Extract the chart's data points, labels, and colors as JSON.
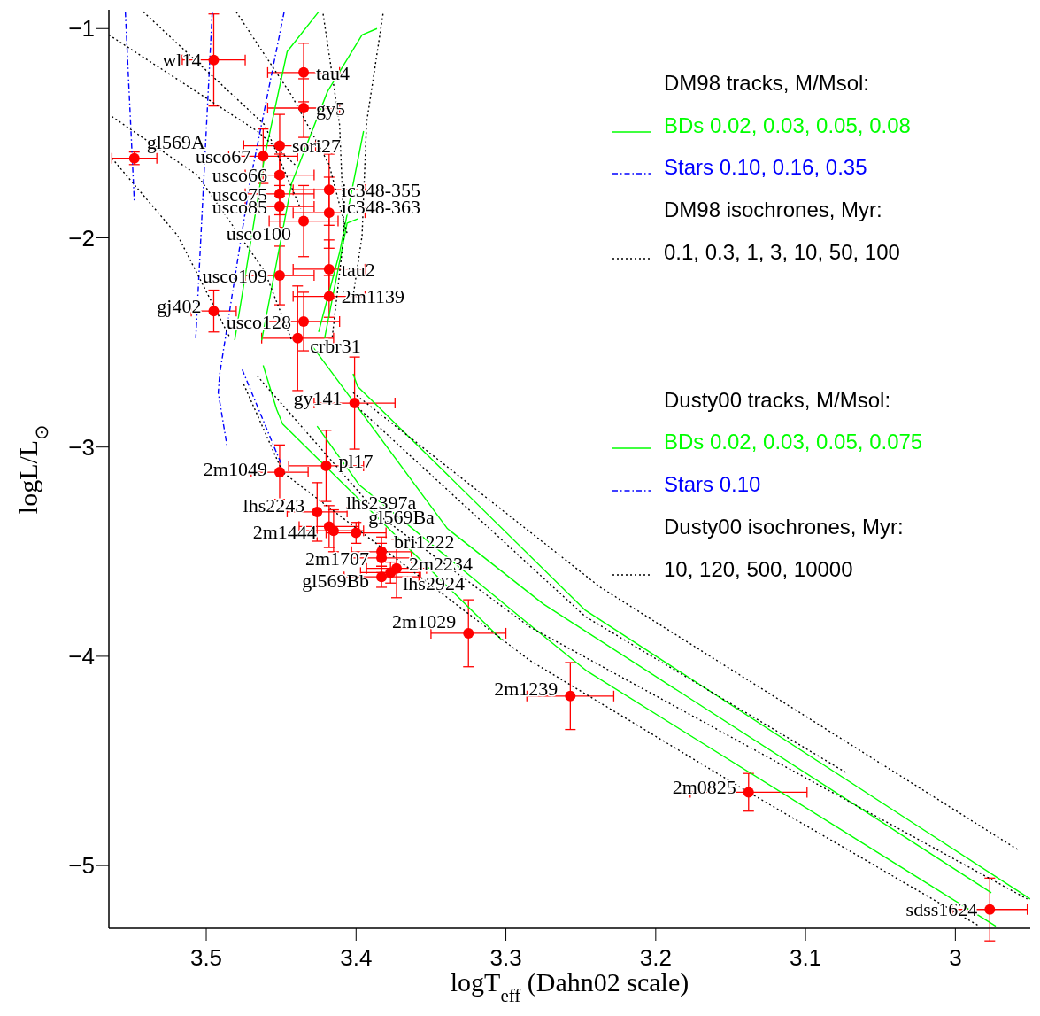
{
  "chart_data": {
    "type": "scatter",
    "xlabel": "logT$_{eff}$ (Dahn02 scale)",
    "ylabel": "logL/L$_{⊙}$",
    "xlim": [
      3.565,
      2.95
    ],
    "ylim": [
      -5.3,
      -0.91
    ],
    "xticks": [
      3.5,
      3.4,
      3.3,
      3.2,
      3.1,
      3
    ],
    "yticks": [
      -5,
      -4,
      -3,
      -2,
      -1
    ],
    "legend": "top right",
    "annotations": [
      "DM98 tracks, M/Msol:",
      "DM98 isochrones, Myr:",
      "Dusty00 tracks, M/Msol:",
      "Dusty00 isochrones, Myr:",
      {
        "text": "wl14",
        "x": 3.495,
        "y": -1.15
      },
      {
        "text": "tau4",
        "x": 3.435,
        "y": -1.21
      },
      {
        "text": "gy5",
        "x": 3.435,
        "y": -1.38
      },
      {
        "text": "sori27",
        "x": 3.451,
        "y": -1.56
      },
      {
        "text": "usco67",
        "x": 3.462,
        "y": -1.61
      },
      {
        "text": "gl569A",
        "x": 3.548,
        "y": -1.62
      },
      {
        "text": "usco66",
        "x": 3.451,
        "y": -1.7
      },
      {
        "text": "usco75",
        "x": 3.451,
        "y": -1.79
      },
      {
        "text": "usco85",
        "x": 3.451,
        "y": -1.85
      },
      {
        "text": "ic348-355",
        "x": 3.418,
        "y": -1.77
      },
      {
        "text": "ic348-363",
        "x": 3.418,
        "y": -1.88
      },
      {
        "text": "usco100",
        "x": 3.435,
        "y": -1.92
      },
      {
        "text": "tau2",
        "x": 3.418,
        "y": -2.15
      },
      {
        "text": "usco109",
        "x": 3.451,
        "y": -2.18
      },
      {
        "text": "2m1139",
        "x": 3.418,
        "y": -2.28
      },
      {
        "text": "gj402",
        "x": 3.495,
        "y": -2.35
      },
      {
        "text": "usco128",
        "x": 3.435,
        "y": -2.4
      },
      {
        "text": "crbr31",
        "x": 3.439,
        "y": -2.48
      },
      {
        "text": "gy141",
        "x": 3.401,
        "y": -2.79
      },
      {
        "text": "pl17",
        "x": 3.42,
        "y": -3.09
      },
      {
        "text": "2m1049",
        "x": 3.451,
        "y": -3.12
      },
      {
        "text": "lhs2243",
        "x": 3.426,
        "y": -3.31
      },
      {
        "text": "2m1444",
        "x": 3.418,
        "y": -3.38
      },
      {
        "text": "lhs2397a",
        "x": 3.415,
        "y": -3.4
      },
      {
        "text": "gl569Ba",
        "x": 3.4,
        "y": -3.41
      },
      {
        "text": "bri1222",
        "x": 3.383,
        "y": -3.5
      },
      {
        "text": "2m1707",
        "x": 3.383,
        "y": -3.53
      },
      {
        "text": "2m2234",
        "x": 3.373,
        "y": -3.58
      },
      {
        "text": "lhs2924",
        "x": 3.377,
        "y": -3.6
      },
      {
        "text": "gl569Bb",
        "x": 3.383,
        "y": -3.62
      },
      {
        "text": "2m1029",
        "x": 3.325,
        "y": -3.89
      },
      {
        "text": "2m1239",
        "x": 3.257,
        "y": -4.19
      },
      {
        "text": "2m0825",
        "x": 3.138,
        "y": -4.65
      },
      {
        "text": "sdss1624",
        "x": 2.977,
        "y": -5.21
      }
    ],
    "series": [
      {
        "marker": "circle",
        "color": "#ff0000",
        "x": [
          3.495,
          3.435,
          3.435,
          3.451,
          3.462,
          3.548,
          3.451,
          3.451,
          3.451,
          3.418,
          3.418,
          3.435,
          3.418,
          3.451,
          3.418,
          3.495,
          3.435,
          3.439,
          3.401,
          3.42,
          3.451,
          3.426,
          3.418,
          3.415,
          3.4,
          3.383,
          3.383,
          3.373,
          3.377,
          3.383,
          3.325,
          3.257,
          3.138,
          2.977
        ],
        "values": [
          -1.15,
          -1.21,
          -1.38,
          -1.56,
          -1.61,
          -1.62,
          -1.7,
          -1.79,
          -1.85,
          -1.77,
          -1.88,
          -1.92,
          -2.15,
          -2.18,
          -2.28,
          -2.35,
          -2.4,
          -2.48,
          -2.79,
          -3.09,
          -3.12,
          -3.31,
          -3.38,
          -3.4,
          -3.41,
          -3.5,
          -3.53,
          -3.58,
          -3.6,
          -3.62,
          -3.89,
          -4.19,
          -4.65,
          -5.21
        ],
        "errors": [
          0.22,
          0.14,
          0.14,
          0.15,
          0.13,
          0.03,
          0.1,
          0.1,
          0.1,
          0.17,
          0.17,
          0.17,
          0.14,
          0.14,
          0.1,
          0.1,
          0.14,
          0.25,
          0.22,
          0.17,
          0.13,
          0.14,
          0.1,
          0.1,
          0.05,
          0.07,
          0.07,
          0.14,
          0.05,
          0.05,
          0.16,
          0.16,
          0.09,
          0.15
        ],
        "xerrors": [
          0.021,
          0.024,
          0.024,
          0.024,
          0.023,
          0.015,
          0.023,
          0.023,
          0.023,
          0.024,
          0.024,
          0.023,
          0.024,
          0.023,
          0.024,
          0.015,
          0.024,
          0.024,
          0.027,
          0.025,
          0.019,
          0.02,
          0.02,
          0.02,
          0.02,
          0.02,
          0.02,
          0.02,
          0.02,
          0.025,
          0.025,
          0.029,
          0.039,
          0.025
        ]
      },
      {
        "type": "line",
        "name": "BDs 0.02, 0.03, 0.05, 0.08",
        "color": "#00ff00",
        "line_style": "solid",
        "x": [
          3.481,
          3.461,
          3.446,
          3.425
        ],
        "values": [
          -2.49,
          -1.61,
          -1.11,
          -0.92
        ]
      },
      {
        "type": "line",
        "color": "#00ff00",
        "line_style": "solid",
        "x": [
          3.463,
          3.443,
          3.419,
          3.396,
          3.386
        ],
        "values": [
          -2.49,
          -1.74,
          -1.3,
          -1.03,
          -1.0
        ]
      },
      {
        "type": "line",
        "color": "#00ff00",
        "line_style": "solid",
        "x": [
          3.425,
          3.411,
          3.395
        ],
        "values": [
          -2.45,
          -2.07,
          -1.49
        ]
      },
      {
        "type": "line",
        "color": "#00ff00",
        "line_style": "solid",
        "x": [
          3.421,
          3.406,
          3.399
        ],
        "values": [
          -2.48,
          -1.93,
          -1.91
        ]
      },
      {
        "type": "line",
        "name": "Stars 0.10, 0.16, 0.35",
        "color": "#0000ff",
        "line_style": "dashed",
        "x": [
          3.554,
          3.548
        ],
        "values": [
          -0.92,
          -1.83
        ]
      },
      {
        "type": "line",
        "color": "#0000ff",
        "line_style": "dashed",
        "x": [
          3.496,
          3.507
        ],
        "values": [
          -0.92,
          -2.48
        ]
      },
      {
        "type": "line",
        "color": "#0000ff",
        "line_style": "dashed",
        "x": [
          3.448,
          3.471,
          3.491,
          3.492,
          3.486
        ],
        "values": [
          -0.92,
          -1.74,
          -2.65,
          -2.74,
          -3.0
        ]
      },
      {
        "type": "line",
        "name": "0.1, 0.3, 1, 3, 10, 50, 100",
        "color": "#000000",
        "line_style": "dotted",
        "x": [
          3.542,
          3.461,
          3.437
        ],
        "values": [
          -0.92,
          -1.46,
          -1.86
        ]
      },
      {
        "type": "line",
        "color": "#000000",
        "line_style": "dotted",
        "x": [
          3.565,
          3.466,
          3.44
        ],
        "values": [
          -1.03,
          -1.49,
          -1.655
        ]
      },
      {
        "type": "line",
        "color": "#000000",
        "line_style": "dotted",
        "x": [
          3.48,
          3.443,
          3.418,
          3.406
        ],
        "values": [
          -0.92,
          -1.32,
          -1.65,
          -1.98
        ]
      },
      {
        "type": "line",
        "color": "#000000",
        "line_style": "dotted",
        "x": [
          3.422,
          3.411,
          3.408,
          3.416
        ],
        "values": [
          -0.93,
          -1.46,
          -1.98,
          -2.48
        ]
      },
      {
        "type": "line",
        "color": "#000000",
        "line_style": "dotted",
        "x": [
          3.382,
          3.393,
          3.396,
          3.402
        ],
        "values": [
          -0.93,
          -1.45,
          -1.99,
          -2.28
        ]
      },
      {
        "type": "line",
        "color": "#000000",
        "line_style": "dotted",
        "x": [
          3.563,
          3.506,
          3.461,
          3.443
        ],
        "values": [
          -1.42,
          -1.7,
          -2.16,
          -2.49
        ]
      },
      {
        "type": "line",
        "color": "#000000",
        "line_style": "dotted",
        "x": [
          3.563,
          3.519,
          3.484
        ],
        "values": [
          -1.62,
          -1.99,
          -2.48
        ]
      },
      {
        "type": "line",
        "name": "BDs 0.02, 0.03, 0.05, 0.075",
        "color": "#00ff00",
        "line_style": "solid",
        "x": [
          3.462,
          3.453,
          3.449,
          3.303
        ],
        "values": [
          -2.61,
          -2.82,
          -2.89,
          -3.92
        ]
      },
      {
        "type": "line",
        "color": "#00ff00",
        "line_style": "solid",
        "x": [
          3.426,
          3.398,
          3.284,
          3.246,
          2.973
        ],
        "values": [
          -2.9,
          -3.18,
          -3.85,
          -4.07,
          -5.29
        ]
      },
      {
        "type": "line",
        "color": "#00ff00",
        "line_style": "solid",
        "x": [
          3.429,
          3.401,
          3.339,
          3.275,
          2.976
        ],
        "values": [
          -2.52,
          -2.79,
          -3.39,
          -3.75,
          -5.13
        ]
      },
      {
        "type": "line",
        "color": "#00ff00",
        "line_style": "solid",
        "x": [
          3.402,
          3.399,
          3.247,
          2.95
        ],
        "values": [
          -2.65,
          -2.71,
          -3.78,
          -5.16
        ]
      },
      {
        "type": "line",
        "name": "Stars 0.10",
        "color": "#0000ff",
        "line_style": "dashed",
        "x": [
          3.476,
          3.45
        ],
        "values": [
          -2.63,
          -3.08
        ]
      },
      {
        "type": "line",
        "name": "10, 120, 500, 10000",
        "color": "#000000",
        "line_style": "dotted",
        "x": [
          3.402,
          3.237,
          2.957
        ],
        "values": [
          -2.74,
          -3.67,
          -4.93
        ]
      },
      {
        "type": "line",
        "color": "#000000",
        "line_style": "dotted",
        "x": [
          3.399,
          3.247,
          3.072
        ],
        "values": [
          -2.81,
          -3.81,
          -4.56
        ]
      },
      {
        "type": "line",
        "color": "#000000",
        "line_style": "dotted",
        "x": [
          3.466,
          3.384,
          3.284,
          2.952
        ],
        "values": [
          -2.66,
          -3.33,
          -3.86,
          -5.16
        ]
      },
      {
        "type": "line",
        "color": "#000000",
        "line_style": "dotted",
        "x": [
          3.475,
          3.449,
          3.284,
          3.138,
          2.984
        ],
        "values": [
          -2.7,
          -3.12,
          -4.02,
          -4.65,
          -5.29
        ]
      }
    ]
  }
}
